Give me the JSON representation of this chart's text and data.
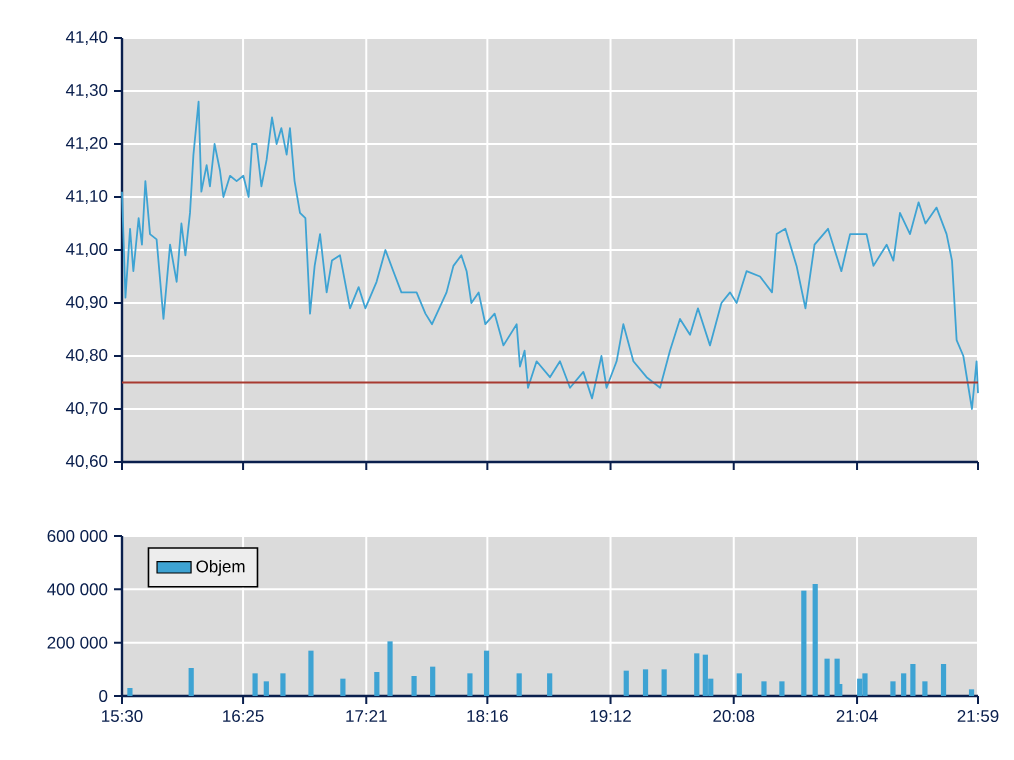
{
  "chart_data": [
    {
      "type": "line",
      "xlim": [
        15.5,
        21.983
      ],
      "ylim": [
        40.6,
        41.4
      ],
      "xticks": [
        {
          "value": 15.5,
          "label": null
        },
        {
          "value": 16.417,
          "label": null
        },
        {
          "value": 17.35,
          "label": null
        },
        {
          "value": 18.267,
          "label": null
        },
        {
          "value": 19.2,
          "label": null
        },
        {
          "value": 20.133,
          "label": null
        },
        {
          "value": 21.067,
          "label": null
        },
        {
          "value": 21.983,
          "label": null
        }
      ],
      "yticks": [
        {
          "value": 40.6,
          "label": "40,60"
        },
        {
          "value": 40.7,
          "label": "40,70"
        },
        {
          "value": 40.8,
          "label": "40,80"
        },
        {
          "value": 40.9,
          "label": "40,90"
        },
        {
          "value": 41.0,
          "label": "41,00"
        },
        {
          "value": 41.1,
          "label": "41,10"
        },
        {
          "value": 41.2,
          "label": "41,20"
        },
        {
          "value": 41.3,
          "label": "41,30"
        },
        {
          "value": 41.4,
          "label": "41,40"
        }
      ],
      "tick_labels": "y",
      "grid": true,
      "ref_lines": [
        {
          "axis": "y",
          "value": 40.75,
          "color": "#a83a30"
        }
      ],
      "series": [
        {
          "color": "#3ea3d3",
          "x": [
            15.5,
            15.526,
            15.561,
            15.586,
            15.626,
            15.651,
            15.677,
            15.712,
            15.762,
            15.814,
            15.864,
            15.914,
            15.95,
            15.98,
            16.015,
            16.041,
            16.08,
            16.101,
            16.141,
            16.166,
            16.201,
            16.242,
            16.268,
            16.318,
            16.368,
            16.419,
            16.459,
            16.485,
            16.519,
            16.556,
            16.595,
            16.636,
            16.671,
            16.707,
            16.747,
            16.772,
            16.807,
            16.848,
            16.889,
            16.924,
            16.959,
            17.0,
            17.05,
            17.09,
            17.151,
            17.227,
            17.292,
            17.343,
            17.428,
            17.495,
            17.555,
            17.616,
            17.731,
            17.798,
            17.848,
            17.958,
            18.01,
            18.07,
            18.11,
            18.146,
            18.201,
            18.252,
            18.322,
            18.389,
            18.489,
            18.514,
            18.549,
            18.575,
            18.64,
            18.741,
            18.817,
            18.893,
            18.994,
            19.06,
            19.131,
            19.17,
            19.246,
            19.297,
            19.373,
            19.473,
            19.575,
            19.65,
            19.726,
            19.802,
            19.862,
            19.953,
            20.04,
            20.105,
            20.155,
            20.23,
            20.332,
            20.423,
            20.458,
            20.524,
            20.609,
            20.676,
            20.745,
            20.847,
            20.948,
            21.014,
            21.139,
            21.191,
            21.291,
            21.342,
            21.392,
            21.468,
            21.533,
            21.585,
            21.669,
            21.745,
            21.786,
            21.821,
            21.872,
            21.937,
            21.972,
            21.983
          ],
          "values": [
            41.11,
            40.91,
            41.04,
            40.96,
            41.06,
            41.01,
            41.13,
            41.03,
            41.02,
            40.87,
            41.01,
            40.94,
            41.05,
            40.99,
            41.07,
            41.18,
            41.28,
            41.11,
            41.16,
            41.12,
            41.2,
            41.15,
            41.1,
            41.14,
            41.13,
            41.14,
            41.1,
            41.2,
            41.2,
            41.12,
            41.17,
            41.25,
            41.2,
            41.23,
            41.18,
            41.23,
            41.13,
            41.07,
            41.06,
            40.88,
            40.97,
            41.03,
            40.92,
            40.98,
            40.99,
            40.89,
            40.93,
            40.89,
            40.94,
            41.0,
            40.96,
            40.92,
            40.92,
            40.88,
            40.86,
            40.92,
            40.97,
            40.99,
            40.96,
            40.9,
            40.92,
            40.86,
            40.88,
            40.82,
            40.86,
            40.78,
            40.81,
            40.74,
            40.79,
            40.76,
            40.79,
            40.74,
            40.77,
            40.72,
            40.8,
            40.74,
            40.79,
            40.86,
            40.79,
            40.76,
            40.74,
            40.81,
            40.87,
            40.84,
            40.89,
            40.82,
            40.9,
            40.92,
            40.9,
            40.96,
            40.95,
            40.92,
            41.03,
            41.04,
            40.97,
            40.89,
            41.01,
            41.04,
            40.96,
            41.03,
            41.03,
            40.97,
            41.01,
            40.98,
            41.07,
            41.03,
            41.09,
            41.05,
            41.08,
            41.03,
            40.98,
            40.83,
            40.8,
            40.7,
            40.79,
            40.73
          ]
        }
      ]
    },
    {
      "type": "bar",
      "xlim": [
        15.5,
        21.983
      ],
      "ylim": [
        0,
        600000
      ],
      "xticks": [
        {
          "value": 15.5,
          "label": "15:30"
        },
        {
          "value": 16.417,
          "label": "16:25"
        },
        {
          "value": 17.35,
          "label": "17:21"
        },
        {
          "value": 18.267,
          "label": "18:16"
        },
        {
          "value": 19.2,
          "label": "19:12"
        },
        {
          "value": 20.133,
          "label": "20:08"
        },
        {
          "value": 21.067,
          "label": "21:04"
        },
        {
          "value": 21.983,
          "label": "21:59"
        }
      ],
      "yticks": [
        0,
        {
          "value": 200000,
          "label": "200 000"
        },
        {
          "value": 400000,
          "label": "400 000"
        },
        {
          "value": 600000,
          "label": "600 000"
        }
      ],
      "grid": true,
      "legend": "top left",
      "series": [
        {
          "name": "Objem",
          "color": "#3ea3d3",
          "x": [
            15.56,
            16.024,
            16.508,
            16.593,
            16.719,
            16.931,
            17.173,
            17.43,
            17.53,
            17.712,
            17.853,
            18.135,
            18.261,
            18.508,
            18.739,
            19.319,
            19.465,
            19.606,
            19.853,
            19.918,
            19.959,
            20.175,
            20.362,
            20.498,
            20.664,
            20.75,
            20.84,
            20.916,
            20.936,
            21.087,
            21.127,
            21.339,
            21.42,
            21.49,
            21.581,
            21.722,
            21.934
          ],
          "values": [
            30000,
            105000,
            85000,
            55000,
            85000,
            170000,
            65000,
            90000,
            205000,
            75000,
            110000,
            85000,
            170000,
            85000,
            85000,
            95000,
            100000,
            100000,
            160000,
            155000,
            65000,
            85000,
            55000,
            55000,
            395000,
            420000,
            140000,
            140000,
            45000,
            65000,
            85000,
            55000,
            85000,
            120000,
            55000,
            120000,
            25000
          ]
        }
      ]
    }
  ]
}
